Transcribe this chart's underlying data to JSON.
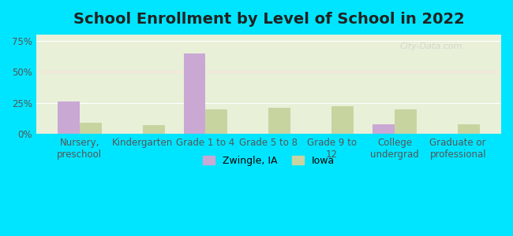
{
  "title": "School Enrollment by Level of School in 2022",
  "categories": [
    "Nursery,\npreschool",
    "Kindergarten",
    "Grade 1 to 4",
    "Grade 5 to 8",
    "Grade 9 to\n12",
    "College\nundergrad",
    "Graduate or\nprofessional"
  ],
  "zwingle_values": [
    26,
    0,
    65,
    0,
    0,
    8,
    0
  ],
  "iowa_values": [
    9,
    7,
    20,
    21,
    22,
    20,
    8
  ],
  "zwingle_color": "#c9a8d4",
  "iowa_color": "#c8d4a0",
  "background_outer": "#00e5ff",
  "background_inner": "#e8f0d8",
  "ylim": [
    0,
    80
  ],
  "yticks": [
    0,
    25,
    50,
    75
  ],
  "ytick_labels": [
    "0%",
    "25%",
    "50%",
    "75%"
  ],
  "legend_labels": [
    "Zwingle, IA",
    "Iowa"
  ],
  "watermark": "City-Data.com",
  "bar_width": 0.35,
  "title_fontsize": 14,
  "tick_fontsize": 8.5
}
